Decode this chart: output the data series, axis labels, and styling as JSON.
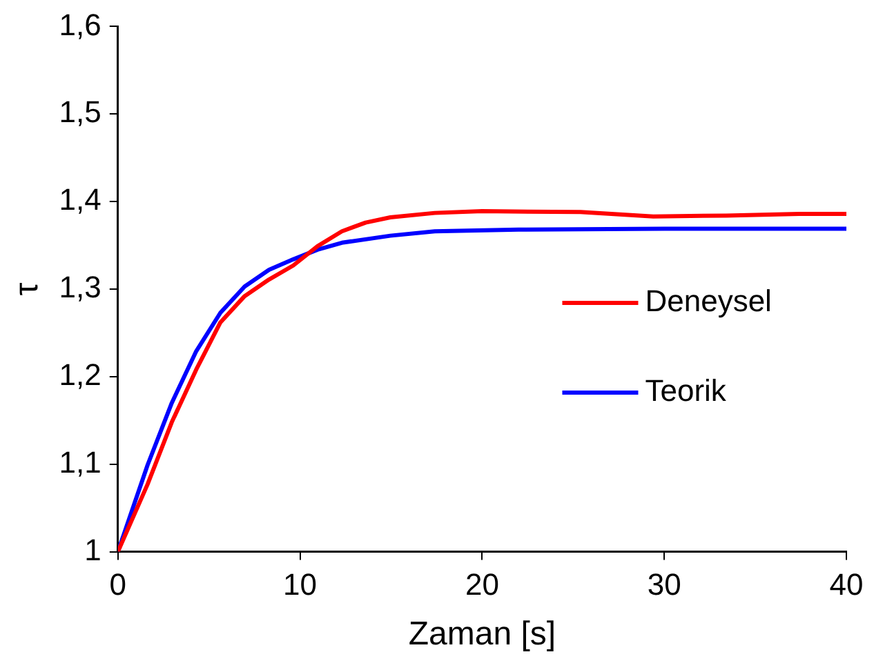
{
  "chart_data": {
    "type": "line",
    "xlabel": "Zaman [s]",
    "ylabel": "τ",
    "xlim": [
      0,
      40
    ],
    "xticks": [
      0,
      10,
      20,
      30,
      40
    ],
    "ylim": [
      1,
      1.6
    ],
    "yticks": [
      1,
      {
        "value": 1.1,
        "label": "1,1"
      },
      {
        "value": 1.2,
        "label": "1,2"
      },
      {
        "value": 1.3,
        "label": "1,3"
      },
      {
        "value": 1.4,
        "label": "1,4"
      },
      {
        "value": 1.5,
        "label": "1,5"
      },
      {
        "value": 1.6,
        "label": "1,6"
      }
    ],
    "grid": false,
    "legend": "right",
    "marker": "none",
    "line_style": "solid",
    "series": [
      {
        "name": "Deneysel",
        "color": "#ff0000",
        "x": [
          0,
          1.63,
          2.96,
          4.3,
          5.63,
          6.96,
          8.3,
          9.63,
          10.96,
          12.3,
          13.6,
          14.96,
          17.4,
          20,
          25.4,
          29.4,
          33.4,
          37.4,
          40
        ],
        "values": [
          1,
          1.077,
          1.148,
          1.208,
          1.262,
          1.292,
          1.311,
          1.327,
          1.349,
          1.366,
          1.376,
          1.382,
          1.387,
          1.389,
          1.388,
          1.383,
          1.384,
          1.386,
          1.386
        ]
      },
      {
        "name": "Teorik",
        "color": "#0000ff",
        "x": [
          0,
          1.63,
          2.96,
          4.3,
          5.63,
          6.96,
          8.3,
          9.63,
          10.96,
          12.3,
          14.96,
          17.4,
          22,
          30,
          40
        ],
        "values": [
          1,
          1.099,
          1.17,
          1.229,
          1.273,
          1.303,
          1.322,
          1.334,
          1.345,
          1.353,
          1.361,
          1.366,
          1.368,
          1.369,
          1.369
        ]
      }
    ]
  }
}
